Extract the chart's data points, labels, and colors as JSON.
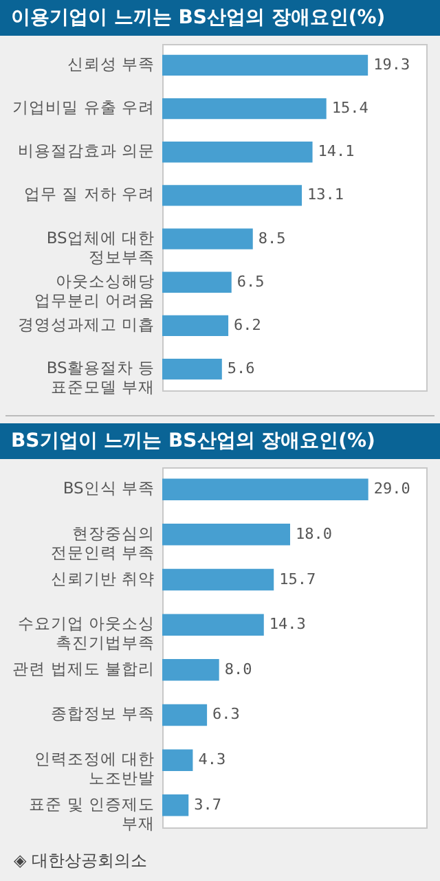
{
  "chart_data": [
    {
      "type": "bar",
      "orientation": "horizontal",
      "title": "이용기업이 느끼는 BS산업의 장애요인(%)",
      "categories": [
        "신뢰성 부족",
        "기업비밀 유출 우려",
        "비용절감효과 의문",
        "업무 질 저하 우려",
        "BS업체에 대한\n정보부족",
        "아웃소싱해당\n업무분리 어려움",
        "경영성과제고 미흡",
        "BS활용절차 등\n표준모델 부재"
      ],
      "values": [
        19.3,
        15.4,
        14.1,
        13.1,
        8.5,
        6.5,
        6.2,
        5.6
      ],
      "value_labels": [
        "19.3",
        "15.4",
        "14.1",
        "13.1",
        "8.5",
        "6.5",
        "6.2",
        "5.6"
      ],
      "color": "#479fd1"
    },
    {
      "type": "bar",
      "orientation": "horizontal",
      "title": "BS기업이 느끼는 BS산업의 장애요인(%)",
      "categories": [
        "BS인식 부족",
        "현장중심의\n전문인력 부족",
        "신뢰기반 취약",
        "수요기업 아웃소싱\n촉진기법부족",
        "관련 법제도 불합리",
        "종합정보 부족",
        "인력조정에 대한\n노조반발",
        "표준 및 인증제도\n부재"
      ],
      "values": [
        29.0,
        18.0,
        15.7,
        14.3,
        8.0,
        6.3,
        4.3,
        3.7
      ],
      "value_labels": [
        "29.0",
        "18.0",
        "15.7",
        "14.3",
        "8.0",
        "6.3",
        "4.3",
        "3.7"
      ],
      "color": "#479fd1",
      "annotations": [
        "◈ 대한상공회의소"
      ]
    }
  ]
}
